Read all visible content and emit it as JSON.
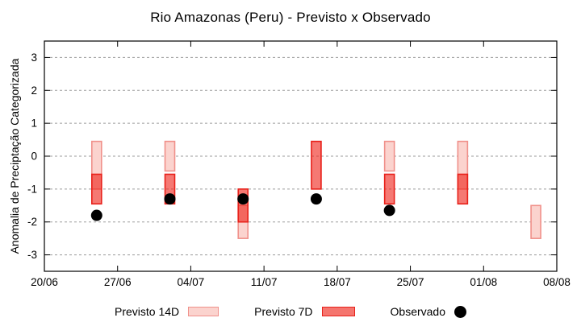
{
  "title": "Rio Amazonas (Peru) - Previsto x Observado",
  "y_axis_label": "Anomalia de Preciptação Categorizada",
  "legend": {
    "items": [
      {
        "label": "Previsto 14D",
        "swatch": "light-red-box"
      },
      {
        "label": "Previsto 7D",
        "swatch": "red-box"
      },
      {
        "label": "Observado",
        "swatch": "black-dot"
      }
    ]
  },
  "chart_data": {
    "type": "bar",
    "title": "Rio Amazonas (Peru) - Previsto x Observado",
    "xlabel": "",
    "ylabel": "Anomalia de Preciptação Categorizada",
    "ylim": [
      -3.5,
      3.5
    ],
    "y_ticks": [
      -3,
      -2,
      -1,
      0,
      1,
      2,
      3
    ],
    "x_tick_labels": [
      "20/06",
      "27/06",
      "04/07",
      "11/07",
      "18/07",
      "25/07",
      "01/08",
      "08/08"
    ],
    "x_tick_every_days": 7,
    "x_total_days": 49,
    "grid": "horizontal dashed gray",
    "legend_position": "bottom center",
    "colors": {
      "previsto_14d_fill": "#fbd3ce",
      "previsto_14d_border": "#f0908a",
      "previsto_7d_fill": "#ee2016",
      "previsto_7d_border": "#e8211a",
      "observado": "#000000",
      "grid": "#9b9b9b",
      "axis": "#000000"
    },
    "series": [
      {
        "name": "Previsto 14D",
        "type": "box",
        "fill": "#fbd3ce",
        "border": "#f0908a",
        "fill_opacity": 1,
        "boxes": [
          {
            "date": "25/06",
            "day": 5,
            "high": 0.45,
            "low": -1.0
          },
          {
            "date": "02/07",
            "day": 12,
            "high": 0.45,
            "low": -0.45
          },
          {
            "date": "09/07",
            "day": 19,
            "high": -1.5,
            "low": -2.5
          },
          {
            "date": "23/07",
            "day": 33,
            "high": 0.45,
            "low": -0.45
          },
          {
            "date": "30/07",
            "day": 40,
            "high": 0.45,
            "low": -1.0
          },
          {
            "date": "06/08",
            "day": 47,
            "high": -1.5,
            "low": -2.5
          }
        ]
      },
      {
        "name": "Previsto 7D",
        "type": "box",
        "fill": "#ee2016",
        "border": "#e8211a",
        "fill_opacity": 0.6,
        "boxes": [
          {
            "date": "25/06",
            "day": 5,
            "high": -0.55,
            "low": -1.45
          },
          {
            "date": "02/07",
            "day": 12,
            "high": -0.55,
            "low": -1.45
          },
          {
            "date": "09/07",
            "day": 19,
            "high": -1.0,
            "low": -2.0
          },
          {
            "date": "16/07",
            "day": 26,
            "high": 0.45,
            "low": -1.0
          },
          {
            "date": "23/07",
            "day": 33,
            "high": -0.55,
            "low": -1.45
          },
          {
            "date": "30/07",
            "day": 40,
            "high": -0.55,
            "low": -1.45
          }
        ]
      },
      {
        "name": "Observado",
        "type": "point",
        "color": "#000000",
        "point_radius": 7,
        "points": [
          {
            "date": "25/06",
            "day": 5,
            "value": -1.8
          },
          {
            "date": "02/07",
            "day": 12,
            "value": -1.3
          },
          {
            "date": "09/07",
            "day": 19,
            "value": -1.3
          },
          {
            "date": "16/07",
            "day": 26,
            "value": -1.3
          },
          {
            "date": "23/07",
            "day": 33,
            "value": -1.65
          }
        ]
      }
    ]
  }
}
